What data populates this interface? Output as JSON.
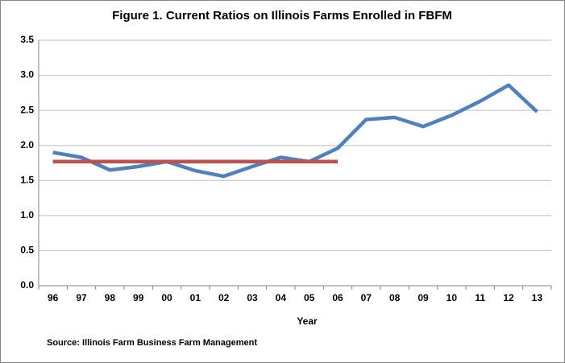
{
  "chart_data": {
    "type": "line",
    "title": "Figure 1.  Current Ratios on Illinois Farms Enrolled in FBFM",
    "x_label": "Year",
    "source": "Source:  Illinois  Farm Business Farm Management",
    "categories": [
      "96",
      "97",
      "98",
      "99",
      "00",
      "01",
      "02",
      "03",
      "04",
      "05",
      "06",
      "07",
      "08",
      "09",
      "10",
      "11",
      "12",
      "13"
    ],
    "series": [
      {
        "color": "#4f81bd",
        "values": [
          1.9,
          1.83,
          1.65,
          1.7,
          1.77,
          1.64,
          1.56,
          1.7,
          1.83,
          1.77,
          1.96,
          2.37,
          2.4,
          2.27,
          2.43,
          2.63,
          2.86,
          2.48
        ]
      },
      {
        "color": "#c0504d",
        "values": [
          1.77,
          1.77,
          1.77,
          1.77,
          1.77,
          1.77,
          1.77,
          1.77,
          1.77,
          1.77,
          1.77,
          null,
          null,
          null,
          null,
          null,
          null,
          null
        ]
      }
    ],
    "ylim": [
      0,
      3.5
    ],
    "yticks": [
      {
        "value": 0,
        "label": "0.0"
      },
      0.5,
      {
        "value": 1,
        "label": "1.0"
      },
      1.5,
      {
        "value": 2,
        "label": "2.0"
      },
      2.5,
      {
        "value": 3,
        "label": "3.0"
      },
      3.5
    ],
    "grid": true
  }
}
